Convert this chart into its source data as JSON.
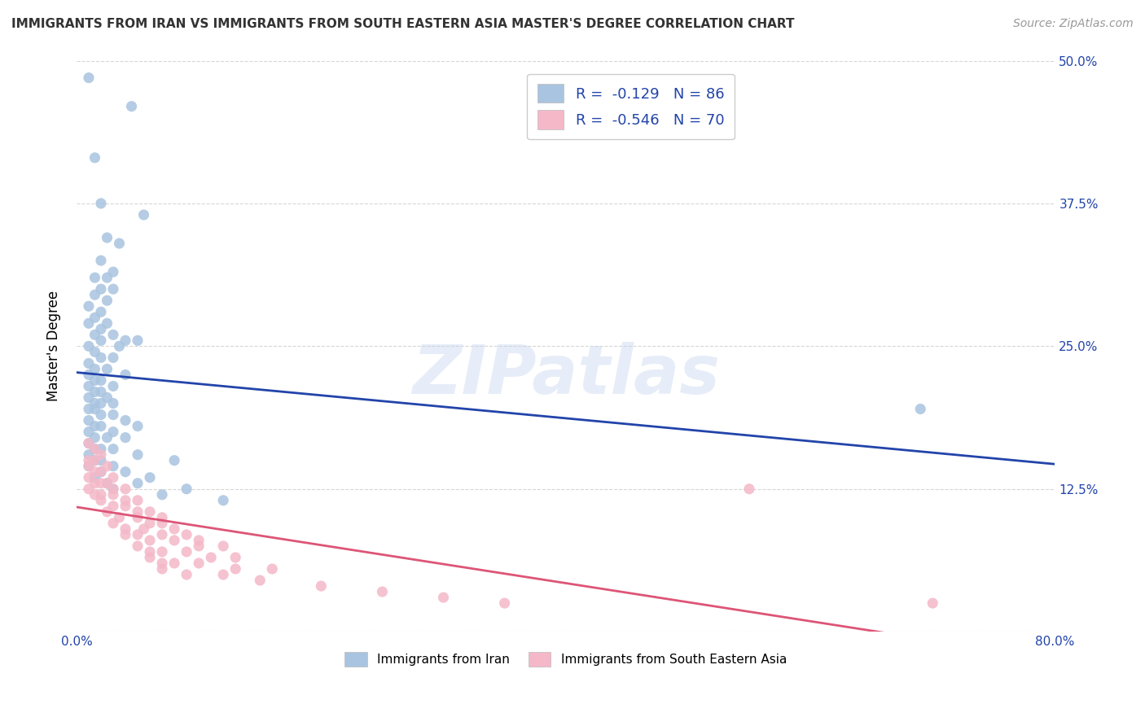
{
  "title": "IMMIGRANTS FROM IRAN VS IMMIGRANTS FROM SOUTH EASTERN ASIA MASTER'S DEGREE CORRELATION CHART",
  "source": "Source: ZipAtlas.com",
  "ylabel": "Master's Degree",
  "watermark": "ZIPatlas",
  "legend_blue_label": "Immigrants from Iran",
  "legend_pink_label": "Immigrants from South Eastern Asia",
  "R_blue": -0.129,
  "N_blue": 86,
  "R_pink": -0.546,
  "N_pink": 70,
  "blue_color": "#a8c4e0",
  "pink_color": "#f4b8c8",
  "blue_line_color": "#2244aa",
  "pink_line_color": "#dd5577",
  "blue_scatter": [
    [
      1.0,
      48.5
    ],
    [
      4.5,
      46.0
    ],
    [
      1.5,
      41.5
    ],
    [
      2.0,
      37.5
    ],
    [
      5.5,
      36.5
    ],
    [
      2.5,
      34.5
    ],
    [
      3.5,
      34.0
    ],
    [
      2.0,
      32.5
    ],
    [
      3.0,
      31.5
    ],
    [
      1.5,
      31.0
    ],
    [
      2.5,
      31.0
    ],
    [
      2.0,
      30.0
    ],
    [
      3.0,
      30.0
    ],
    [
      1.5,
      29.5
    ],
    [
      2.5,
      29.0
    ],
    [
      1.0,
      28.5
    ],
    [
      2.0,
      28.0
    ],
    [
      1.5,
      27.5
    ],
    [
      2.5,
      27.0
    ],
    [
      1.0,
      27.0
    ],
    [
      2.0,
      26.5
    ],
    [
      3.0,
      26.0
    ],
    [
      4.0,
      25.5
    ],
    [
      1.5,
      26.0
    ],
    [
      2.0,
      25.5
    ],
    [
      3.5,
      25.0
    ],
    [
      5.0,
      25.5
    ],
    [
      1.0,
      25.0
    ],
    [
      1.5,
      24.5
    ],
    [
      2.0,
      24.0
    ],
    [
      3.0,
      24.0
    ],
    [
      1.0,
      23.5
    ],
    [
      1.5,
      23.0
    ],
    [
      2.5,
      23.0
    ],
    [
      4.0,
      22.5
    ],
    [
      1.0,
      22.5
    ],
    [
      1.5,
      22.0
    ],
    [
      2.0,
      22.0
    ],
    [
      3.0,
      21.5
    ],
    [
      1.0,
      21.5
    ],
    [
      2.0,
      21.0
    ],
    [
      1.5,
      21.0
    ],
    [
      2.5,
      20.5
    ],
    [
      1.0,
      20.5
    ],
    [
      1.5,
      20.0
    ],
    [
      2.0,
      20.0
    ],
    [
      3.0,
      20.0
    ],
    [
      1.0,
      19.5
    ],
    [
      1.5,
      19.5
    ],
    [
      2.0,
      19.0
    ],
    [
      3.0,
      19.0
    ],
    [
      4.0,
      18.5
    ],
    [
      5.0,
      18.0
    ],
    [
      1.0,
      18.5
    ],
    [
      1.5,
      18.0
    ],
    [
      2.0,
      18.0
    ],
    [
      3.0,
      17.5
    ],
    [
      1.0,
      17.5
    ],
    [
      1.5,
      17.0
    ],
    [
      2.5,
      17.0
    ],
    [
      4.0,
      17.0
    ],
    [
      1.0,
      16.5
    ],
    [
      1.5,
      16.0
    ],
    [
      2.0,
      16.0
    ],
    [
      3.0,
      16.0
    ],
    [
      5.0,
      15.5
    ],
    [
      8.0,
      15.0
    ],
    [
      1.0,
      15.5
    ],
    [
      1.5,
      15.0
    ],
    [
      2.0,
      15.0
    ],
    [
      3.0,
      14.5
    ],
    [
      1.0,
      14.5
    ],
    [
      2.0,
      14.0
    ],
    [
      4.0,
      14.0
    ],
    [
      6.0,
      13.5
    ],
    [
      1.5,
      13.5
    ],
    [
      2.5,
      13.0
    ],
    [
      5.0,
      13.0
    ],
    [
      9.0,
      12.5
    ],
    [
      3.0,
      12.5
    ],
    [
      7.0,
      12.0
    ],
    [
      12.0,
      11.5
    ],
    [
      69.0,
      19.5
    ]
  ],
  "pink_scatter": [
    [
      1.0,
      16.5
    ],
    [
      1.5,
      16.0
    ],
    [
      2.0,
      15.5
    ],
    [
      1.0,
      15.0
    ],
    [
      1.5,
      15.0
    ],
    [
      2.5,
      14.5
    ],
    [
      1.0,
      14.5
    ],
    [
      1.5,
      14.0
    ],
    [
      2.0,
      14.0
    ],
    [
      3.0,
      13.5
    ],
    [
      1.0,
      13.5
    ],
    [
      1.5,
      13.0
    ],
    [
      2.0,
      13.0
    ],
    [
      2.5,
      13.0
    ],
    [
      3.0,
      12.5
    ],
    [
      4.0,
      12.5
    ],
    [
      1.0,
      12.5
    ],
    [
      1.5,
      12.0
    ],
    [
      2.0,
      12.0
    ],
    [
      3.0,
      12.0
    ],
    [
      4.0,
      11.5
    ],
    [
      5.0,
      11.5
    ],
    [
      2.0,
      11.5
    ],
    [
      3.0,
      11.0
    ],
    [
      4.0,
      11.0
    ],
    [
      5.0,
      10.5
    ],
    [
      6.0,
      10.5
    ],
    [
      7.0,
      10.0
    ],
    [
      2.5,
      10.5
    ],
    [
      3.5,
      10.0
    ],
    [
      5.0,
      10.0
    ],
    [
      6.0,
      9.5
    ],
    [
      7.0,
      9.5
    ],
    [
      8.0,
      9.0
    ],
    [
      3.0,
      9.5
    ],
    [
      4.0,
      9.0
    ],
    [
      5.5,
      9.0
    ],
    [
      7.0,
      8.5
    ],
    [
      9.0,
      8.5
    ],
    [
      10.0,
      8.0
    ],
    [
      4.0,
      8.5
    ],
    [
      5.0,
      8.5
    ],
    [
      6.0,
      8.0
    ],
    [
      8.0,
      8.0
    ],
    [
      10.0,
      7.5
    ],
    [
      12.0,
      7.5
    ],
    [
      5.0,
      7.5
    ],
    [
      6.0,
      7.0
    ],
    [
      7.0,
      7.0
    ],
    [
      9.0,
      7.0
    ],
    [
      11.0,
      6.5
    ],
    [
      13.0,
      6.5
    ],
    [
      6.0,
      6.5
    ],
    [
      7.0,
      6.0
    ],
    [
      8.0,
      6.0
    ],
    [
      10.0,
      6.0
    ],
    [
      13.0,
      5.5
    ],
    [
      16.0,
      5.5
    ],
    [
      7.0,
      5.5
    ],
    [
      9.0,
      5.0
    ],
    [
      12.0,
      5.0
    ],
    [
      15.0,
      4.5
    ],
    [
      20.0,
      4.0
    ],
    [
      25.0,
      3.5
    ],
    [
      30.0,
      3.0
    ],
    [
      35.0,
      2.5
    ],
    [
      55.0,
      12.5
    ],
    [
      70.0,
      2.5
    ]
  ],
  "xlim": [
    0,
    80
  ],
  "ylim": [
    0,
    50
  ],
  "yticks": [
    0,
    12.5,
    25.0,
    37.5,
    50.0
  ],
  "xticks": [
    0,
    20,
    40,
    60,
    80
  ],
  "xtick_labels": [
    "0.0%",
    "",
    "",
    "",
    "80.0%"
  ],
  "ytick_labels": [
    "",
    "12.5%",
    "25.0%",
    "37.5%",
    "50.0%"
  ]
}
